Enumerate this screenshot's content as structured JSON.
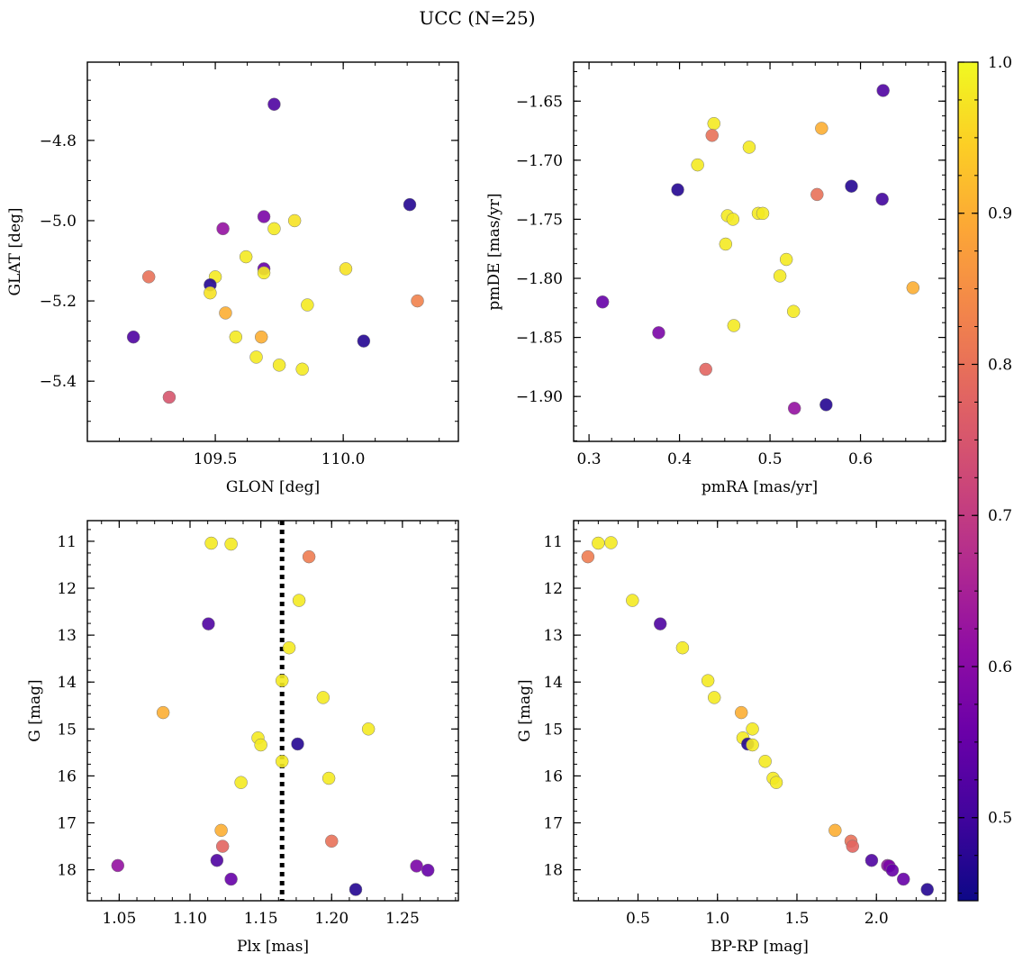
{
  "figure_title": "UCC (N=25)",
  "colorbar": {
    "min": 0.445,
    "max": 1.0,
    "ticks": [
      "0.5",
      "0.6",
      "0.7",
      "0.8",
      "0.9",
      "1.0"
    ],
    "colormap": "plasma"
  },
  "chart_data": [
    {
      "type": "scatter",
      "id": "glon-glat",
      "xlabel": "GLON [deg]",
      "ylabel": "GLAT [deg]",
      "xlim": [
        109.0,
        110.45
      ],
      "ylim": [
        -5.55,
        -4.605
      ],
      "y_inverted": false,
      "xticks": [
        109.5,
        110.0
      ],
      "xtick_labels": [
        "109.5",
        "110.0"
      ],
      "yticks": [
        -5.4,
        -5.2,
        -5.0,
        -4.8
      ],
      "ytick_labels": [
        "−5.4",
        "−5.2",
        "−5.0",
        "−4.8"
      ],
      "points": [
        {
          "x": 109.73,
          "y": -4.71,
          "c": 0.52
        },
        {
          "x": 110.26,
          "y": -4.96,
          "c": 0.47
        },
        {
          "x": 109.69,
          "y": -4.99,
          "c": 0.58
        },
        {
          "x": 109.81,
          "y": -5.0,
          "c": 0.97
        },
        {
          "x": 109.53,
          "y": -5.02,
          "c": 0.62
        },
        {
          "x": 109.73,
          "y": -5.02,
          "c": 0.98
        },
        {
          "x": 109.62,
          "y": -5.09,
          "c": 0.98
        },
        {
          "x": 110.01,
          "y": -5.12,
          "c": 0.97
        },
        {
          "x": 109.69,
          "y": -5.12,
          "c": 0.55
        },
        {
          "x": 109.69,
          "y": -5.13,
          "c": 0.98
        },
        {
          "x": 109.24,
          "y": -5.14,
          "c": 0.8
        },
        {
          "x": 109.5,
          "y": -5.14,
          "c": 0.98
        },
        {
          "x": 109.48,
          "y": -5.16,
          "c": 0.47
        },
        {
          "x": 109.48,
          "y": -5.18,
          "c": 0.97
        },
        {
          "x": 110.29,
          "y": -5.2,
          "c": 0.83
        },
        {
          "x": 109.86,
          "y": -5.21,
          "c": 0.98
        },
        {
          "x": 109.54,
          "y": -5.23,
          "c": 0.9
        },
        {
          "x": 109.18,
          "y": -5.29,
          "c": 0.52
        },
        {
          "x": 109.58,
          "y": -5.29,
          "c": 0.98
        },
        {
          "x": 109.68,
          "y": -5.29,
          "c": 0.9
        },
        {
          "x": 110.08,
          "y": -5.3,
          "c": 0.47
        },
        {
          "x": 109.66,
          "y": -5.34,
          "c": 0.98
        },
        {
          "x": 109.75,
          "y": -5.36,
          "c": 0.98
        },
        {
          "x": 109.84,
          "y": -5.37,
          "c": 0.98
        },
        {
          "x": 109.32,
          "y": -5.44,
          "c": 0.75
        }
      ]
    },
    {
      "type": "scatter",
      "id": "pmra-pmde",
      "xlabel": "pmRA [mas/yr]",
      "ylabel": "pmDE [mas/yr]",
      "xlim": [
        0.283,
        0.694
      ],
      "ylim": [
        -1.938,
        -1.617
      ],
      "y_inverted": false,
      "xticks": [
        0.3,
        0.4,
        0.5,
        0.6
      ],
      "xtick_labels": [
        "0.3",
        "0.4",
        "0.5",
        "0.6"
      ],
      "yticks": [
        -1.9,
        -1.85,
        -1.8,
        -1.75,
        -1.7,
        -1.65
      ],
      "ytick_labels": [
        "−1.90",
        "−1.85",
        "−1.80",
        "−1.75",
        "−1.70",
        "−1.65"
      ],
      "points": [
        {
          "x": 0.625,
          "y": -1.641,
          "c": 0.52
        },
        {
          "x": 0.438,
          "y": -1.669,
          "c": 0.98
        },
        {
          "x": 0.557,
          "y": -1.673,
          "c": 0.9
        },
        {
          "x": 0.436,
          "y": -1.679,
          "c": 0.8
        },
        {
          "x": 0.477,
          "y": -1.689,
          "c": 0.98
        },
        {
          "x": 0.42,
          "y": -1.704,
          "c": 0.98
        },
        {
          "x": 0.398,
          "y": -1.725,
          "c": 0.47
        },
        {
          "x": 0.59,
          "y": -1.722,
          "c": 0.47
        },
        {
          "x": 0.552,
          "y": -1.729,
          "c": 0.8
        },
        {
          "x": 0.624,
          "y": -1.733,
          "c": 0.5
        },
        {
          "x": 0.453,
          "y": -1.747,
          "c": 0.98
        },
        {
          "x": 0.459,
          "y": -1.75,
          "c": 0.98
        },
        {
          "x": 0.487,
          "y": -1.745,
          "c": 0.98
        },
        {
          "x": 0.492,
          "y": -1.745,
          "c": 0.98
        },
        {
          "x": 0.451,
          "y": -1.771,
          "c": 0.98
        },
        {
          "x": 0.518,
          "y": -1.784,
          "c": 0.98
        },
        {
          "x": 0.511,
          "y": -1.798,
          "c": 0.98
        },
        {
          "x": 0.658,
          "y": -1.808,
          "c": 0.9
        },
        {
          "x": 0.315,
          "y": -1.82,
          "c": 0.55
        },
        {
          "x": 0.526,
          "y": -1.828,
          "c": 0.98
        },
        {
          "x": 0.46,
          "y": -1.84,
          "c": 0.98
        },
        {
          "x": 0.377,
          "y": -1.846,
          "c": 0.58
        },
        {
          "x": 0.429,
          "y": -1.877,
          "c": 0.78
        },
        {
          "x": 0.562,
          "y": -1.907,
          "c": 0.47
        },
        {
          "x": 0.527,
          "y": -1.91,
          "c": 0.62
        }
      ]
    },
    {
      "type": "scatter",
      "id": "plx-g",
      "xlabel": "Plx [mas]",
      "ylabel": "G [mag]",
      "xlim": [
        1.0275,
        1.2895
      ],
      "ylim": [
        18.66,
        10.56
      ],
      "y_inverted": true,
      "xticks": [
        1.05,
        1.1,
        1.15,
        1.2,
        1.25
      ],
      "xtick_labels": [
        "1.05",
        "1.10",
        "1.15",
        "1.20",
        "1.25"
      ],
      "yticks": [
        11,
        12,
        13,
        14,
        15,
        16,
        17,
        18
      ],
      "ytick_labels": [
        "11",
        "12",
        "13",
        "14",
        "15",
        "16",
        "17",
        "18"
      ],
      "vline": 1.165,
      "points": [
        {
          "x": 1.115,
          "y": 11.04,
          "c": 0.98
        },
        {
          "x": 1.129,
          "y": 11.06,
          "c": 0.98
        },
        {
          "x": 1.184,
          "y": 11.33,
          "c": 0.82
        },
        {
          "x": 1.177,
          "y": 12.26,
          "c": 0.98
        },
        {
          "x": 1.113,
          "y": 12.76,
          "c": 0.52
        },
        {
          "x": 1.17,
          "y": 13.27,
          "c": 0.98
        },
        {
          "x": 1.165,
          "y": 13.97,
          "c": 0.98
        },
        {
          "x": 1.194,
          "y": 14.33,
          "c": 0.98
        },
        {
          "x": 1.081,
          "y": 14.65,
          "c": 0.9
        },
        {
          "x": 1.226,
          "y": 15.0,
          "c": 0.98
        },
        {
          "x": 1.148,
          "y": 15.19,
          "c": 0.98
        },
        {
          "x": 1.15,
          "y": 15.34,
          "c": 0.98
        },
        {
          "x": 1.176,
          "y": 15.32,
          "c": 0.47
        },
        {
          "x": 1.165,
          "y": 15.69,
          "c": 0.98
        },
        {
          "x": 1.198,
          "y": 16.05,
          "c": 0.98
        },
        {
          "x": 1.136,
          "y": 16.14,
          "c": 0.98
        },
        {
          "x": 1.122,
          "y": 17.16,
          "c": 0.9
        },
        {
          "x": 1.2,
          "y": 17.39,
          "c": 0.8
        },
        {
          "x": 1.123,
          "y": 17.5,
          "c": 0.78
        },
        {
          "x": 1.119,
          "y": 17.8,
          "c": 0.52
        },
        {
          "x": 1.049,
          "y": 17.91,
          "c": 0.62
        },
        {
          "x": 1.26,
          "y": 17.92,
          "c": 0.58
        },
        {
          "x": 1.268,
          "y": 18.01,
          "c": 0.55
        },
        {
          "x": 1.129,
          "y": 18.2,
          "c": 0.55
        },
        {
          "x": 1.217,
          "y": 18.42,
          "c": 0.47
        }
      ]
    },
    {
      "type": "scatter",
      "id": "bprp-g",
      "xlabel": "BP-RP [mag]",
      "ylabel": "G [mag]",
      "xlim": [
        0.095,
        2.435
      ],
      "ylim": [
        18.66,
        10.56
      ],
      "y_inverted": true,
      "xticks": [
        0.5,
        1.0,
        1.5,
        2.0
      ],
      "xtick_labels": [
        "0.5",
        "1.0",
        "1.5",
        "2.0"
      ],
      "yticks": [
        11,
        12,
        13,
        14,
        15,
        16,
        17,
        18
      ],
      "ytick_labels": [
        "11",
        "12",
        "13",
        "14",
        "15",
        "16",
        "17",
        "18"
      ],
      "points": [
        {
          "x": 0.185,
          "y": 11.33,
          "c": 0.82
        },
        {
          "x": 0.25,
          "y": 11.04,
          "c": 0.98
        },
        {
          "x": 0.33,
          "y": 11.03,
          "c": 0.98
        },
        {
          "x": 0.465,
          "y": 12.26,
          "c": 0.98
        },
        {
          "x": 0.64,
          "y": 12.76,
          "c": 0.52
        },
        {
          "x": 0.78,
          "y": 13.27,
          "c": 0.98
        },
        {
          "x": 0.94,
          "y": 13.97,
          "c": 0.98
        },
        {
          "x": 0.98,
          "y": 14.33,
          "c": 0.98
        },
        {
          "x": 1.15,
          "y": 14.65,
          "c": 0.9
        },
        {
          "x": 1.22,
          "y": 15.0,
          "c": 0.98
        },
        {
          "x": 1.16,
          "y": 15.19,
          "c": 0.98
        },
        {
          "x": 1.19,
          "y": 15.32,
          "c": 0.47
        },
        {
          "x": 1.22,
          "y": 15.34,
          "c": 0.98
        },
        {
          "x": 1.3,
          "y": 15.69,
          "c": 0.98
        },
        {
          "x": 1.35,
          "y": 16.05,
          "c": 0.98
        },
        {
          "x": 1.37,
          "y": 16.14,
          "c": 0.98
        },
        {
          "x": 1.74,
          "y": 17.16,
          "c": 0.9
        },
        {
          "x": 1.84,
          "y": 17.39,
          "c": 0.8
        },
        {
          "x": 1.85,
          "y": 17.5,
          "c": 0.78
        },
        {
          "x": 1.97,
          "y": 17.8,
          "c": 0.52
        },
        {
          "x": 2.07,
          "y": 17.91,
          "c": 0.62
        },
        {
          "x": 2.08,
          "y": 17.92,
          "c": 0.58
        },
        {
          "x": 2.1,
          "y": 18.01,
          "c": 0.55
        },
        {
          "x": 2.17,
          "y": 18.2,
          "c": 0.55
        },
        {
          "x": 2.32,
          "y": 18.42,
          "c": 0.47
        }
      ]
    }
  ]
}
